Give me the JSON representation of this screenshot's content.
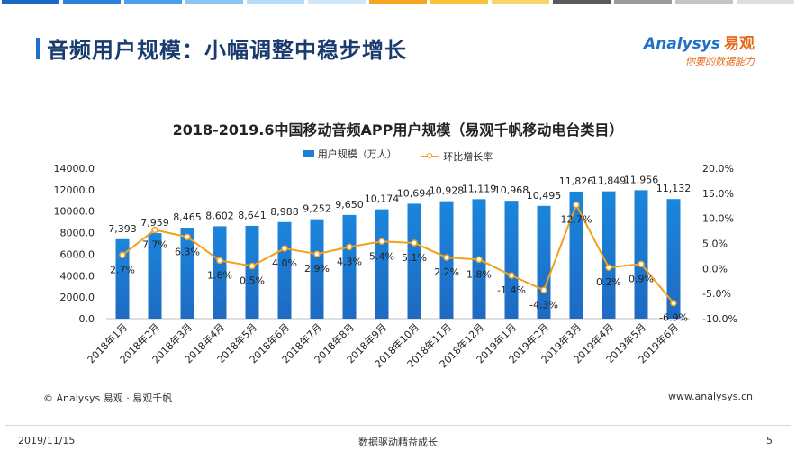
{
  "header": {
    "title": "音频用户规模：小幅调整中稳步增长",
    "logo_main": "Analysys",
    "logo_cn": "易观",
    "logo_slogan": "你要的数据能力",
    "topbar_colors": [
      "#1a67c4",
      "#2a7fd8",
      "#4aa0ea",
      "#8cc4f2",
      "#b8dcf7",
      "#cfe6f8",
      "#f5a623",
      "#f8c23b",
      "#f9d46b",
      "#5a5a5a",
      "#9a9a9a",
      "#c4c4c4",
      "#dedede"
    ]
  },
  "chart_data": {
    "type": "bar",
    "title": "2018-2019.6中国移动音频APP用户规模（易观千帆移动电台类目）",
    "categories": [
      "2018年1月",
      "2018年2月",
      "2018年3月",
      "2018年4月",
      "2018年5月",
      "2018年6月",
      "2018年7月",
      "2018年8月",
      "2018年9月",
      "2018年10月",
      "2018年11月",
      "2018年12月",
      "2019年1月",
      "2019年2月",
      "2019年3月",
      "2019年4月",
      "2019年5月",
      "2019年6月"
    ],
    "series": [
      {
        "name": "用户规模（万人）",
        "type": "bar",
        "axis": "left",
        "color": "#1f7fd4",
        "values": [
          7393,
          7959,
          8465,
          8602,
          8641,
          8988,
          9252,
          9650,
          10174,
          10694,
          10928,
          11119,
          10968,
          10495,
          11826,
          11849,
          11956,
          11132
        ],
        "labels": [
          "7,393",
          "7,959",
          "8,465",
          "8,602",
          "8,641",
          "8,988",
          "9,252",
          "9,650",
          "10,174",
          "10,694",
          "10,928",
          "11,119",
          "10,968",
          "10,495",
          "11,826",
          "11,849",
          "11,956",
          "11,132"
        ]
      },
      {
        "name": "环比增长率",
        "type": "line",
        "axis": "right",
        "color": "#f5a01a",
        "values": [
          2.7,
          7.7,
          6.3,
          1.6,
          0.5,
          4.0,
          2.9,
          4.3,
          5.4,
          5.1,
          2.2,
          1.8,
          -1.4,
          -4.3,
          12.7,
          0.2,
          0.9,
          -6.9
        ],
        "labels": [
          "2.7%",
          "7.7%",
          "6.3%",
          "1.6%",
          "0.5%",
          "4.0%",
          "2.9%",
          "4.3%",
          "5.4%",
          "5.1%",
          "2.2%",
          "1.8%",
          "-1.4%",
          "-4.3%",
          "12.7%",
          "0.2%",
          "0.9%",
          "-6.9%"
        ]
      }
    ],
    "y_left": {
      "min": 0,
      "max": 14000,
      "step": 2000,
      "ticks": [
        "0.0",
        "2000.0",
        "4000.0",
        "6000.0",
        "8000.0",
        "10000.0",
        "12000.0",
        "14000.0"
      ]
    },
    "y_right": {
      "min": -10,
      "max": 20,
      "step": 5,
      "ticks": [
        "-10.0%",
        "-5.0%",
        "0.0%",
        "5.0%",
        "10.0%",
        "15.0%",
        "20.0%"
      ]
    },
    "grid": false,
    "legend": "top-center"
  },
  "footer": {
    "copyright": "© Analysys 易观 · 易观千帆",
    "website": "www.analysys.cn",
    "date": "2019/11/15",
    "slogan": "数据驱动精益成长",
    "page": "5"
  }
}
